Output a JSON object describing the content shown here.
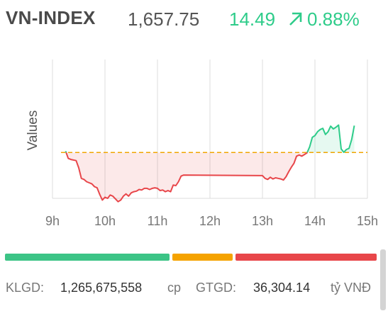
{
  "index": {
    "name": "VN-INDEX",
    "value": "1,657.75",
    "change": "14.49",
    "change_pct": "0.88%",
    "up_color": "#2ecc8a",
    "down_color": "#e8464a",
    "ref_color": "#f0a500"
  },
  "chart_data": {
    "type": "line",
    "title": "",
    "xlabel": "",
    "ylabel": "Values",
    "x_ticks": [
      "9h",
      "10h",
      "11h",
      "12h",
      "13h",
      "14h",
      "15h"
    ],
    "x_tick_hours": [
      9,
      10,
      11,
      12,
      13,
      14,
      15
    ],
    "xlim": [
      9,
      15
    ],
    "ylim": [
      1635,
      1660
    ],
    "reference": 1643.26,
    "grid": true,
    "series": [
      {
        "x": [
          9.25,
          9.3,
          9.35,
          9.45,
          9.5,
          9.55,
          9.6,
          9.65,
          9.7,
          9.75,
          9.8,
          9.85,
          9.9,
          9.95,
          10.0,
          10.05,
          10.1,
          10.15,
          10.2,
          10.25,
          10.3,
          10.35,
          10.4,
          10.45,
          10.5,
          10.55,
          10.6,
          10.65,
          10.7,
          10.75,
          10.8,
          10.85,
          10.9,
          10.95,
          11.0,
          11.05,
          11.1,
          11.15,
          11.2,
          11.25,
          11.3,
          11.35,
          11.4,
          11.45,
          11.5,
          13.0,
          13.05,
          13.1,
          13.15,
          13.2,
          13.25,
          13.3,
          13.35,
          13.4,
          13.45,
          13.5,
          13.55,
          13.6,
          13.65,
          13.7,
          13.75,
          13.8,
          13.85,
          13.9,
          13.95,
          14.0,
          14.05,
          14.1,
          14.15,
          14.2,
          14.25,
          14.3,
          14.35,
          14.4,
          14.45,
          14.5,
          14.55,
          14.6,
          14.65,
          14.7,
          14.75
        ],
        "values": [
          1643.5,
          1642.2,
          1642.0,
          1641.8,
          1640.5,
          1638.6,
          1638.4,
          1638.0,
          1637.8,
          1637.6,
          1637.1,
          1636.9,
          1635.7,
          1634.7,
          1635.2,
          1635.0,
          1635.6,
          1635.4,
          1634.9,
          1634.4,
          1634.7,
          1635.4,
          1635.8,
          1635.4,
          1636.0,
          1636.2,
          1636.3,
          1636.6,
          1636.5,
          1636.8,
          1636.8,
          1636.6,
          1636.8,
          1636.9,
          1636.8,
          1636.4,
          1636.5,
          1636.2,
          1636.4,
          1636.2,
          1637.4,
          1637.3,
          1638.0,
          1639.0,
          1639.2,
          1639.1,
          1638.6,
          1638.4,
          1638.8,
          1638.5,
          1638.7,
          1638.6,
          1638.5,
          1638.3,
          1638.9,
          1639.8,
          1640.6,
          1641.3,
          1642.6,
          1642.8,
          1642.6,
          1642.9,
          1643.2,
          1644.3,
          1646.0,
          1646.3,
          1647.0,
          1647.4,
          1647.6,
          1646.5,
          1647.0,
          1648.0,
          1647.5,
          1647.8,
          1648.2,
          1643.9,
          1643.3,
          1643.8,
          1644.0,
          1645.6,
          1648.1
        ]
      }
    ]
  },
  "breadth": {
    "advancing_fraction": 0.45,
    "unchanged_fraction": 0.17,
    "declining_fraction": 0.38,
    "advancing_color": "#3cc486",
    "unchanged_color": "#f5a300",
    "declining_color": "#e8464a"
  },
  "footer": {
    "volume_label": "KLGD:",
    "volume_value": "1,265,675,558",
    "volume_unit": "cp",
    "value_label": "GTGD:",
    "value_value": "36,304.14",
    "value_unit": "tỷ VNĐ"
  }
}
